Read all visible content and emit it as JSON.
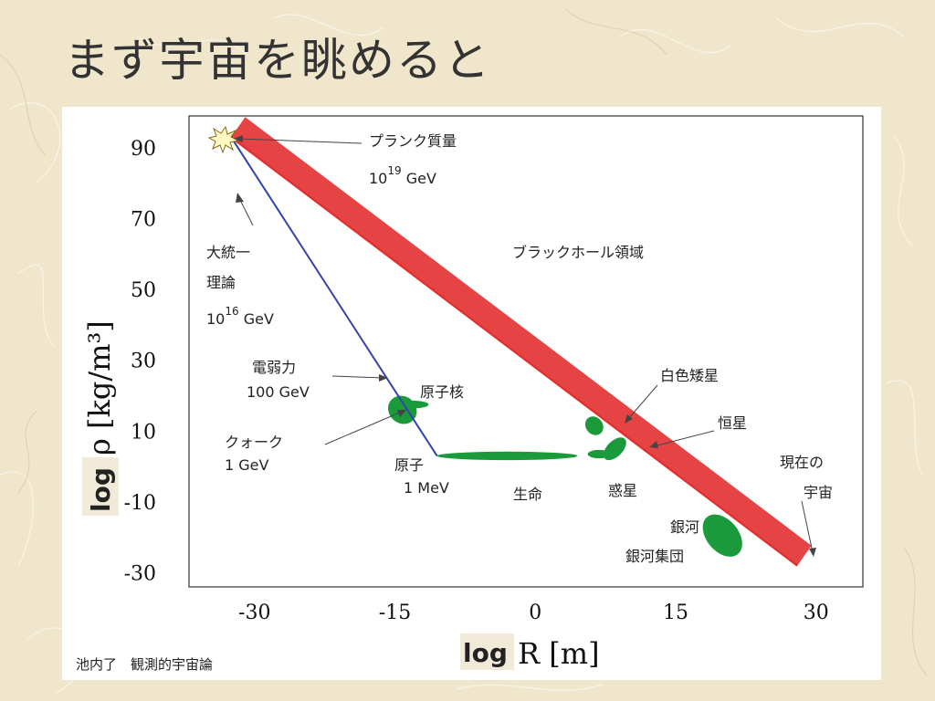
{
  "slide": {
    "title": "まず宇宙を眺めると",
    "credit": "池内了　観測的宇宙論"
  },
  "chart_data": {
    "type": "scatter",
    "title": "",
    "xlabel_log": "log",
    "xlabel": "R [m]",
    "ylabel_log": "log",
    "ylabel": "ρ [kg/m³]",
    "xlim": [
      -37,
      35
    ],
    "ylim": [
      -34,
      99
    ],
    "x_ticks": [
      -30,
      -15,
      0,
      15,
      30
    ],
    "y_ticks": [
      90,
      70,
      50,
      30,
      10,
      -10,
      -30
    ],
    "lines": [
      {
        "name": "",
        "color": "#3344aa",
        "points": [
          [
            -32.5,
            93
          ],
          [
            -10.5,
            3
          ]
        ]
      },
      {
        "name": "",
        "color": "#e03030",
        "points": [
          [
            -32.5,
            93
          ],
          [
            28,
            -28
          ]
        ]
      }
    ],
    "regions": [
      {
        "label": "原子核",
        "x": -14.2,
        "y": 16,
        "rx": 1.6,
        "ry": 3.8,
        "rotate": 40
      },
      {
        "label": "原子核",
        "x": -13.2,
        "y": 17.5,
        "rx": 1.8,
        "ry": 1.1,
        "rotate": 0
      },
      {
        "label": "生命",
        "x": -3,
        "y": 3,
        "rx": 7.5,
        "ry": 1.2,
        "rotate": 0
      },
      {
        "label": "白色矮星",
        "x": 6.3,
        "y": 11.5,
        "rx": 0.9,
        "ry": 2.8,
        "rotate": -40
      },
      {
        "label": "惑星",
        "x": 6.8,
        "y": 3.5,
        "rx": 1.2,
        "ry": 1.2,
        "rotate": 0
      },
      {
        "label": "恒星",
        "x": 8.5,
        "y": 5,
        "rx": 1.5,
        "ry": 2.2,
        "rotate": -45
      },
      {
        "label": "銀河",
        "x": 20,
        "y": -19.5,
        "rx": 1.7,
        "ry": 6.8,
        "rotate": -40
      }
    ],
    "annotations": [
      {
        "id": "planck",
        "lines": [
          "プランク質量",
          "10^19 GeV"
        ]
      },
      {
        "id": "gut",
        "lines": [
          "大統一",
          "理論",
          "10^16 GeV"
        ]
      },
      {
        "id": "electroweak",
        "lines": [
          "電弱力",
          "100 GeV"
        ]
      },
      {
        "id": "quark",
        "lines": [
          "クォーク",
          "1 GeV"
        ]
      },
      {
        "id": "atom",
        "lines": [
          "原子",
          "1 MeV"
        ]
      },
      {
        "id": "nucleus",
        "lines": [
          "原子核"
        ]
      },
      {
        "id": "life",
        "lines": [
          "生命"
        ]
      },
      {
        "id": "planet",
        "lines": [
          "惑星"
        ]
      },
      {
        "id": "white_dwarf",
        "lines": [
          "白色矮星"
        ]
      },
      {
        "id": "star",
        "lines": [
          "恒星"
        ]
      },
      {
        "id": "galaxy",
        "lines": [
          "銀河",
          "銀河集団"
        ]
      },
      {
        "id": "universe",
        "lines": [
          "現在の",
          "宇宙"
        ]
      },
      {
        "id": "black_hole",
        "lines": [
          "ブラックホール領域"
        ]
      }
    ]
  }
}
